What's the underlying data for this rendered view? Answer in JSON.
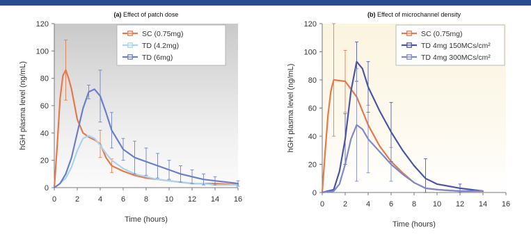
{
  "chart_data": [
    {
      "type": "line",
      "title_tag": "(a)",
      "title": "Effect of patch dose",
      "xlabel": "Time (hours)",
      "ylabel": "hGH plasma level (ng/mL)",
      "xlim": [
        0,
        16
      ],
      "ylim": [
        0,
        120
      ],
      "xticks": [
        0,
        2,
        4,
        6,
        8,
        10,
        12,
        14,
        16
      ],
      "yticks": [
        0,
        20,
        40,
        60,
        80,
        100,
        120
      ],
      "legend_position": "top-center",
      "background": "gray gradient shading behind plot",
      "series": [
        {
          "name": "SC (0.75mg)",
          "color": "#e8784a",
          "points": [
            {
              "x": 0,
              "y": 0
            },
            {
              "x": 0.25,
              "y": 30
            },
            {
              "x": 0.5,
              "y": 65
            },
            {
              "x": 0.75,
              "y": 82
            },
            {
              "x": 1,
              "y": 86
            },
            {
              "x": 1.25,
              "y": 80
            },
            {
              "x": 1.5,
              "y": 72
            },
            {
              "x": 2,
              "y": 50
            },
            {
              "x": 2.5,
              "y": 40
            },
            {
              "x": 3,
              "y": 37
            },
            {
              "x": 3.5,
              "y": 35
            },
            {
              "x": 4,
              "y": 32
            },
            {
              "x": 4.5,
              "y": 22
            },
            {
              "x": 5,
              "y": 16
            },
            {
              "x": 6,
              "y": 12
            },
            {
              "x": 7,
              "y": 9
            },
            {
              "x": 8,
              "y": 7
            },
            {
              "x": 9,
              "y": 6
            },
            {
              "x": 10,
              "y": 5
            },
            {
              "x": 11,
              "y": 4
            },
            {
              "x": 12,
              "y": 3
            },
            {
              "x": 13,
              "y": 3
            },
            {
              "x": 14,
              "y": 3
            },
            {
              "x": 16,
              "y": 2
            }
          ],
          "errors": [
            {
              "x": 1,
              "y": 86,
              "err": 22
            },
            {
              "x": 4,
              "y": 32,
              "err": 10
            },
            {
              "x": 5,
              "y": 16,
              "err": 5
            }
          ]
        },
        {
          "name": "TD (4.2mg)",
          "color": "#a9d4ee",
          "points": [
            {
              "x": 0,
              "y": 0
            },
            {
              "x": 0.5,
              "y": 3
            },
            {
              "x": 1,
              "y": 7
            },
            {
              "x": 1.5,
              "y": 15
            },
            {
              "x": 2,
              "y": 27
            },
            {
              "x": 2.5,
              "y": 36
            },
            {
              "x": 3,
              "y": 38
            },
            {
              "x": 3.5,
              "y": 36
            },
            {
              "x": 4,
              "y": 31
            },
            {
              "x": 4.5,
              "y": 25
            },
            {
              "x": 5,
              "y": 20
            },
            {
              "x": 6,
              "y": 14
            },
            {
              "x": 7,
              "y": 10
            },
            {
              "x": 8,
              "y": 8
            },
            {
              "x": 9,
              "y": 6
            },
            {
              "x": 10,
              "y": 5
            },
            {
              "x": 11,
              "y": 4
            },
            {
              "x": 12,
              "y": 3
            },
            {
              "x": 13,
              "y": 3
            },
            {
              "x": 14,
              "y": 2
            },
            {
              "x": 16,
              "y": 2
            }
          ],
          "errors": []
        },
        {
          "name": "TD (6mg)",
          "color": "#6b7fc7",
          "points": [
            {
              "x": 0,
              "y": 0
            },
            {
              "x": 0.5,
              "y": 3
            },
            {
              "x": 1,
              "y": 10
            },
            {
              "x": 1.5,
              "y": 22
            },
            {
              "x": 2,
              "y": 40
            },
            {
              "x": 2.5,
              "y": 58
            },
            {
              "x": 3,
              "y": 70
            },
            {
              "x": 3.5,
              "y": 72
            },
            {
              "x": 4,
              "y": 67
            },
            {
              "x": 4.5,
              "y": 55
            },
            {
              "x": 5,
              "y": 42
            },
            {
              "x": 6,
              "y": 28
            },
            {
              "x": 7,
              "y": 22
            },
            {
              "x": 8,
              "y": 19
            },
            {
              "x": 9,
              "y": 16
            },
            {
              "x": 10,
              "y": 13
            },
            {
              "x": 11,
              "y": 10
            },
            {
              "x": 12,
              "y": 8
            },
            {
              "x": 13,
              "y": 6
            },
            {
              "x": 14,
              "y": 5
            },
            {
              "x": 15,
              "y": 4
            },
            {
              "x": 16,
              "y": 3
            }
          ],
          "errors": [
            {
              "x": 3,
              "y": 70,
              "err": 5
            },
            {
              "x": 4,
              "y": 67,
              "err": 19
            },
            {
              "x": 5,
              "y": 42,
              "err": 13
            },
            {
              "x": 6,
              "y": 28,
              "err": 8
            },
            {
              "x": 7,
              "y": 22,
              "err": 12
            },
            {
              "x": 8,
              "y": 19,
              "err": 10
            },
            {
              "x": 9,
              "y": 16,
              "err": 9
            },
            {
              "x": 10,
              "y": 13,
              "err": 7
            },
            {
              "x": 11,
              "y": 10,
              "err": 6
            },
            {
              "x": 12,
              "y": 8,
              "err": 5
            },
            {
              "x": 13,
              "y": 6,
              "err": 4
            },
            {
              "x": 14,
              "y": 5,
              "err": 3
            },
            {
              "x": 16,
              "y": 3,
              "err": 2
            }
          ]
        }
      ]
    },
    {
      "type": "line",
      "title_tag": "(b)",
      "title": "Effect of microchannel density",
      "xlabel": "Time (hours)",
      "ylabel": "hGH plasma level (ng/mL)",
      "xlim": [
        0,
        16
      ],
      "ylim": [
        0,
        120
      ],
      "xticks": [
        0,
        2,
        4,
        6,
        8,
        10,
        12,
        14,
        16
      ],
      "yticks": [
        0,
        20,
        40,
        60,
        80,
        100,
        120
      ],
      "legend_position": "top-right",
      "background": "pale yellow shading behind plot",
      "series": [
        {
          "name": "SC (0.75mg)",
          "color": "#e8784a",
          "points": [
            {
              "x": 0,
              "y": 0
            },
            {
              "x": 0.25,
              "y": 28
            },
            {
              "x": 0.5,
              "y": 55
            },
            {
              "x": 0.75,
              "y": 72
            },
            {
              "x": 1,
              "y": 80
            },
            {
              "x": 2,
              "y": 79
            },
            {
              "x": 3,
              "y": 68
            },
            {
              "x": 4,
              "y": 48
            },
            {
              "x": 5,
              "y": 33
            },
            {
              "x": 6,
              "y": 22
            },
            {
              "x": 7,
              "y": 14
            },
            {
              "x": 8,
              "y": 7
            },
            {
              "x": 9,
              "y": 3
            },
            {
              "x": 10,
              "y": 2
            },
            {
              "x": 12,
              "y": 1
            },
            {
              "x": 14,
              "y": 1
            }
          ],
          "errors": [
            {
              "x": 1,
              "y": 80,
              "err": 40
            },
            {
              "x": 2,
              "y": 79,
              "err": 22
            }
          ]
        },
        {
          "name": "TD 4mg 150MCs/cm²",
          "color": "#4a55a8",
          "points": [
            {
              "x": 0,
              "y": 0
            },
            {
              "x": 1,
              "y": 2
            },
            {
              "x": 1.5,
              "y": 15
            },
            {
              "x": 2,
              "y": 38
            },
            {
              "x": 2.5,
              "y": 72
            },
            {
              "x": 3,
              "y": 93
            },
            {
              "x": 3.5,
              "y": 88
            },
            {
              "x": 4,
              "y": 75
            },
            {
              "x": 5,
              "y": 58
            },
            {
              "x": 6,
              "y": 43
            },
            {
              "x": 7,
              "y": 30
            },
            {
              "x": 8,
              "y": 19
            },
            {
              "x": 9,
              "y": 10
            },
            {
              "x": 10,
              "y": 6
            },
            {
              "x": 12,
              "y": 3
            },
            {
              "x": 14,
              "y": 1
            }
          ],
          "errors": [
            {
              "x": 2,
              "y": 38,
              "err": 18
            },
            {
              "x": 3,
              "y": 93,
              "err": 14
            },
            {
              "x": 4,
              "y": 75,
              "err": 18
            },
            {
              "x": 6,
              "y": 43,
              "err": 21
            },
            {
              "x": 9,
              "y": 10,
              "err": 14
            },
            {
              "x": 12,
              "y": 3,
              "err": 3
            }
          ]
        },
        {
          "name": "TD 4mg 300MCs/cm²",
          "color": "#7d88cf",
          "points": [
            {
              "x": 0,
              "y": 0
            },
            {
              "x": 1,
              "y": 1
            },
            {
              "x": 1.5,
              "y": 6
            },
            {
              "x": 2,
              "y": 20
            },
            {
              "x": 2.5,
              "y": 38
            },
            {
              "x": 3,
              "y": 48
            },
            {
              "x": 3.5,
              "y": 45
            },
            {
              "x": 4,
              "y": 38
            },
            {
              "x": 5,
              "y": 29
            },
            {
              "x": 6,
              "y": 20
            },
            {
              "x": 7,
              "y": 13
            },
            {
              "x": 8,
              "y": 7
            },
            {
              "x": 9,
              "y": 3
            },
            {
              "x": 10,
              "y": 2
            },
            {
              "x": 12,
              "y": 1
            },
            {
              "x": 14,
              "y": 1
            }
          ],
          "errors": [
            {
              "x": 3,
              "y": 48,
              "err": 40
            },
            {
              "x": 4,
              "y": 38,
              "err": 24
            },
            {
              "x": 6,
              "y": 20,
              "err": 12
            }
          ]
        }
      ]
    }
  ]
}
